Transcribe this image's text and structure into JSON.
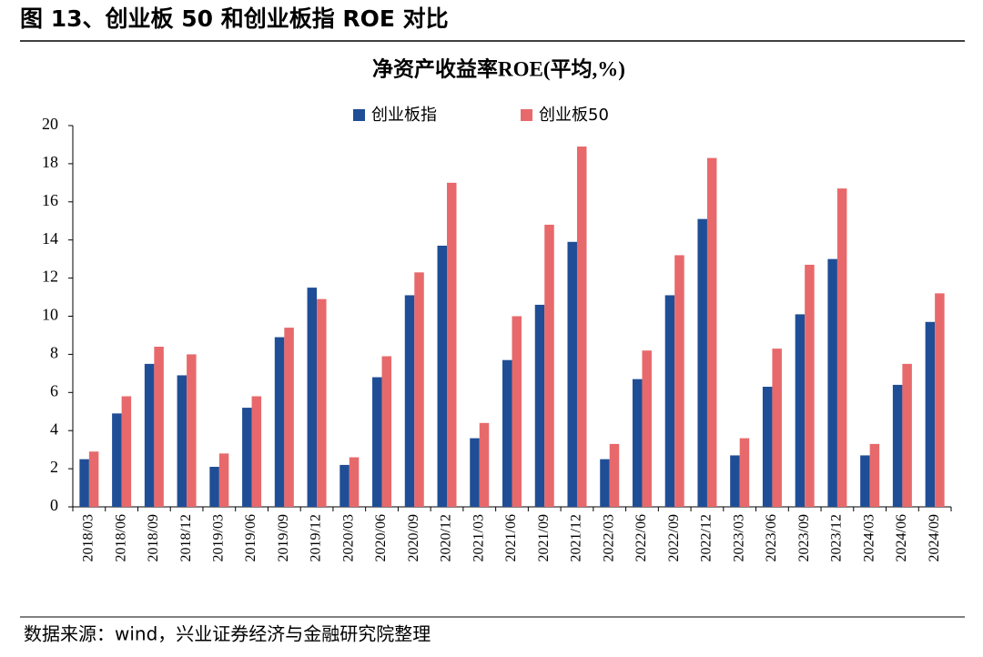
{
  "header": {
    "title": "图 13、创业板 50 和创业板指 ROE 对比"
  },
  "chart_data": {
    "type": "bar",
    "title": "净资产收益率ROE(平均,%)",
    "categories": [
      "2018/03",
      "2018/06",
      "2018/09",
      "2018/12",
      "2019/03",
      "2019/06",
      "2019/09",
      "2019/12",
      "2020/03",
      "2020/06",
      "2020/09",
      "2020/12",
      "2021/03",
      "2021/06",
      "2021/09",
      "2021/12",
      "2022/03",
      "2022/06",
      "2022/09",
      "2022/12",
      "2023/03",
      "2023/06",
      "2023/09",
      "2023/12",
      "2024/03",
      "2024/06",
      "2024/09"
    ],
    "series": [
      {
        "name": "创业板指",
        "color": "#1f4e96",
        "values": [
          2.5,
          4.9,
          7.5,
          6.9,
          2.1,
          5.2,
          8.9,
          11.5,
          2.2,
          6.8,
          11.1,
          13.7,
          3.6,
          7.7,
          10.6,
          13.9,
          2.5,
          6.7,
          11.1,
          15.1,
          2.7,
          6.3,
          10.1,
          13.0,
          2.7,
          6.4,
          9.7
        ]
      },
      {
        "name": "创业板50",
        "color": "#e8696b",
        "values": [
          2.9,
          5.8,
          8.4,
          8.0,
          2.8,
          5.8,
          9.4,
          10.9,
          2.6,
          7.9,
          12.3,
          17.0,
          4.4,
          10.0,
          14.8,
          18.9,
          3.3,
          8.2,
          13.2,
          18.3,
          3.6,
          8.3,
          12.7,
          16.7,
          3.3,
          7.5,
          11.2
        ]
      }
    ],
    "ylim": [
      0,
      20
    ],
    "yticks": [
      0,
      2,
      4,
      6,
      8,
      10,
      12,
      14,
      16,
      18,
      20
    ],
    "grid": false,
    "legend": "top"
  },
  "footer": {
    "source": "数据来源：wind，兴业证券经济与金融研究院整理"
  }
}
